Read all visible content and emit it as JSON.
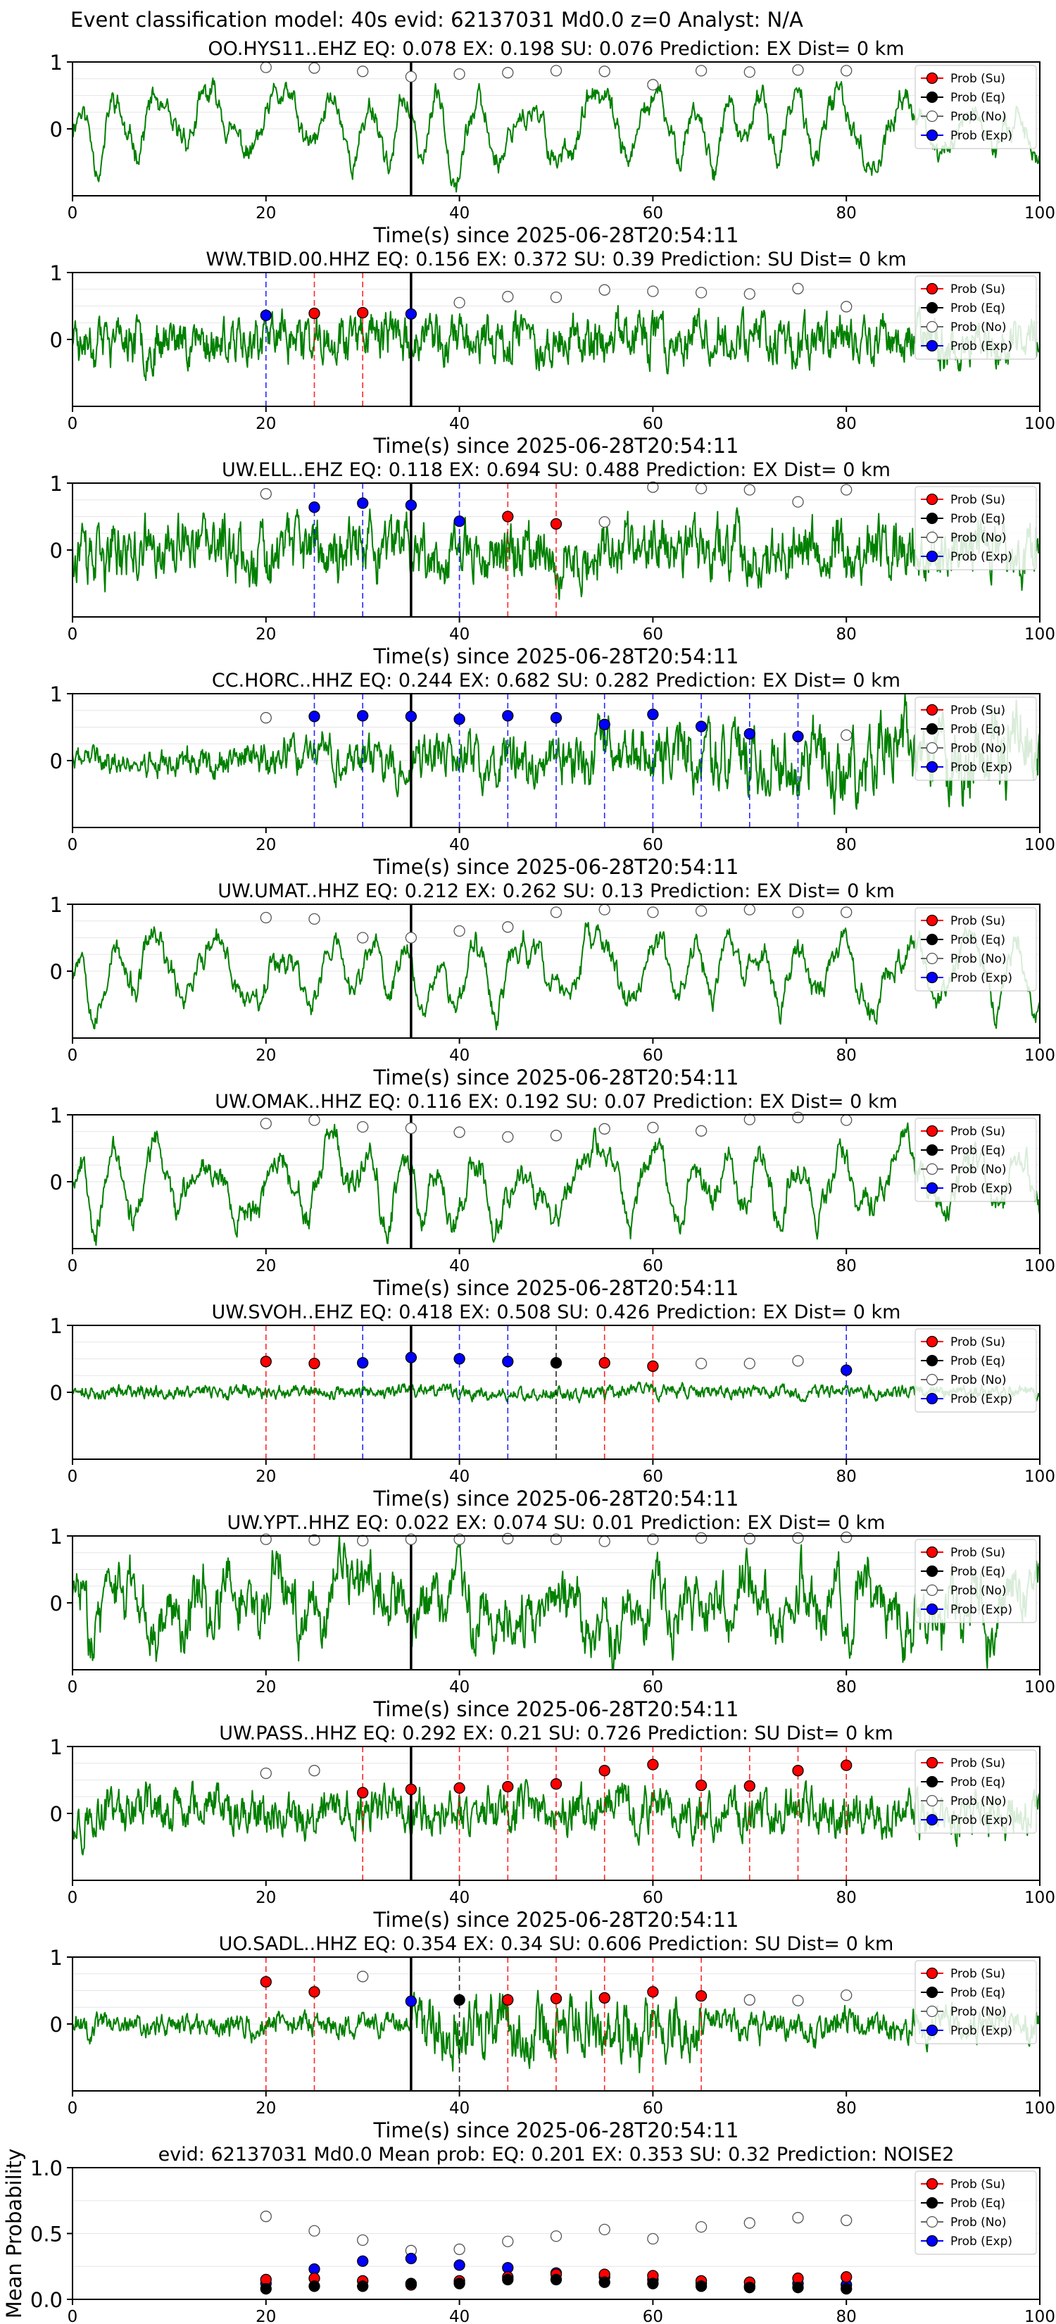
{
  "figure_title": "Event classification model: 40s evid: 62137031 Md0.0 z=0 Analyst: N/A",
  "colors": {
    "waveform": "#008000",
    "prob_su": "#ff0000",
    "prob_eq": "#000000",
    "prob_no": "#ffffff",
    "prob_exp": "#0000ff",
    "origin_line": "#000000"
  },
  "legend": [
    "Prob (Su)",
    "Prob (Eq)",
    "Prob (No)",
    "Prob (Exp)"
  ],
  "chart_data": [
    {
      "type": "line",
      "title": "OO.HYS11..EHZ   EQ: 0.078  EX: 0.198  SU: 0.076   Prediction: EX    Dist= 0 km",
      "xlabel": "Time(s) since 2025-06-28T20:54:11",
      "ylabel": "",
      "xlim": [
        0,
        100
      ],
      "ylim": [
        -1,
        1
      ],
      "xticks": [
        "0",
        "20",
        "40",
        "60",
        "80",
        "100"
      ],
      "yticks": [
        "0",
        "1"
      ],
      "origin_x": 35,
      "waveform": {
        "style": "smooth",
        "amplitude": 0.55,
        "seed": 11
      },
      "window_centers": [
        20,
        25,
        30,
        35,
        40,
        45,
        50,
        55,
        60,
        65,
        70,
        75,
        80
      ],
      "predicted_class": [
        "No",
        "No",
        "No",
        "No",
        "No",
        "No",
        "No",
        "No",
        "No",
        "No",
        "No",
        "No",
        "No"
      ],
      "predicted_prob": [
        0.92,
        0.91,
        0.86,
        0.78,
        0.82,
        0.84,
        0.87,
        0.86,
        0.66,
        0.87,
        0.85,
        0.88,
        0.87
      ]
    },
    {
      "type": "line",
      "title": "WW.TBID.00.HHZ   EQ: 0.156  EX: 0.372  SU: 0.39   Prediction: SU    Dist= 0 km",
      "xlabel": "Time(s) since 2025-06-28T20:54:11",
      "ylabel": "",
      "xlim": [
        0,
        100
      ],
      "ylim": [
        -1,
        1
      ],
      "xticks": [
        "0",
        "20",
        "40",
        "60",
        "80",
        "100"
      ],
      "yticks": [
        "0",
        "1"
      ],
      "origin_x": 35,
      "waveform": {
        "style": "noisy",
        "amplitude": 0.35,
        "seed": 23
      },
      "window_centers": [
        20,
        25,
        30,
        35,
        40,
        45,
        50,
        55,
        60,
        65,
        70,
        75,
        80
      ],
      "predicted_class": [
        "Exp",
        "Su",
        "Su",
        "Exp",
        "No",
        "No",
        "No",
        "No",
        "No",
        "No",
        "No",
        "No",
        "No"
      ],
      "predicted_prob": [
        0.36,
        0.39,
        0.4,
        0.38,
        0.55,
        0.64,
        0.63,
        0.74,
        0.72,
        0.7,
        0.68,
        0.76,
        0.49
      ]
    },
    {
      "type": "line",
      "title": "UW.ELL..EHZ   EQ: 0.118  EX: 0.694  SU: 0.488   Prediction: EX    Dist= 0 km",
      "xlabel": "Time(s) since 2025-06-28T20:54:11",
      "ylabel": "",
      "xlim": [
        0,
        100
      ],
      "ylim": [
        -1,
        1
      ],
      "xticks": [
        "0",
        "20",
        "40",
        "60",
        "80",
        "100"
      ],
      "yticks": [
        "0",
        "1"
      ],
      "origin_x": 35,
      "waveform": {
        "style": "noisy",
        "amplitude": 0.45,
        "seed": 37
      },
      "window_centers": [
        20,
        25,
        30,
        35,
        40,
        45,
        50,
        55,
        60,
        65,
        70,
        75,
        80
      ],
      "predicted_class": [
        "No",
        "Exp",
        "Exp",
        "Exp",
        "Exp",
        "Su",
        "Su",
        "No",
        "No",
        "No",
        "No",
        "No",
        "No"
      ],
      "predicted_prob": [
        0.84,
        0.64,
        0.7,
        0.67,
        0.43,
        0.5,
        0.39,
        0.42,
        0.94,
        0.92,
        0.9,
        0.72,
        0.9
      ]
    },
    {
      "type": "line",
      "title": "CC.HORC..HHZ   EQ: 0.244  EX: 0.682  SU: 0.282   Prediction: EX    Dist= 0 km",
      "xlabel": "Time(s) since 2025-06-28T20:54:11",
      "ylabel": "",
      "xlim": [
        0,
        100
      ],
      "ylim": [
        -1,
        1
      ],
      "xticks": [
        "0",
        "20",
        "40",
        "60",
        "80",
        "100"
      ],
      "yticks": [
        "0",
        "1"
      ],
      "origin_x": 35,
      "waveform": {
        "style": "growing",
        "amplitude": 0.45,
        "seed": 41
      },
      "window_centers": [
        20,
        25,
        30,
        35,
        40,
        45,
        50,
        55,
        60,
        65,
        70,
        75,
        80
      ],
      "predicted_class": [
        "No",
        "Exp",
        "Exp",
        "Exp",
        "Exp",
        "Exp",
        "Exp",
        "Exp",
        "Exp",
        "Exp",
        "Exp",
        "Exp",
        "No"
      ],
      "predicted_prob": [
        0.64,
        0.66,
        0.67,
        0.66,
        0.62,
        0.67,
        0.64,
        0.54,
        0.69,
        0.51,
        0.4,
        0.36,
        0.38
      ]
    },
    {
      "type": "line",
      "title": "UW.UMAT..HHZ   EQ: 0.212  EX: 0.262  SU: 0.13   Prediction: EX    Dist= 0 km",
      "xlabel": "Time(s) since 2025-06-28T20:54:11",
      "ylabel": "",
      "xlim": [
        0,
        100
      ],
      "ylim": [
        -1,
        1
      ],
      "xticks": [
        "0",
        "20",
        "40",
        "60",
        "80",
        "100"
      ],
      "yticks": [
        "0",
        "1"
      ],
      "origin_x": 35,
      "waveform": {
        "style": "smooth",
        "amplitude": 0.55,
        "seed": 53
      },
      "window_centers": [
        20,
        25,
        30,
        35,
        40,
        45,
        50,
        55,
        60,
        65,
        70,
        75,
        80
      ],
      "predicted_class": [
        "No",
        "No",
        "No",
        "No",
        "No",
        "No",
        "No",
        "No",
        "No",
        "No",
        "No",
        "No",
        "No"
      ],
      "predicted_prob": [
        0.8,
        0.78,
        0.5,
        0.5,
        0.6,
        0.66,
        0.88,
        0.92,
        0.88,
        0.9,
        0.92,
        0.88,
        0.88
      ]
    },
    {
      "type": "line",
      "title": "UW.OMAK..HHZ   EQ: 0.116  EX: 0.192  SU: 0.07   Prediction: EX    Dist= 0 km",
      "xlabel": "Time(s) since 2025-06-28T20:54:11",
      "ylabel": "",
      "xlim": [
        0,
        100
      ],
      "ylim": [
        -1,
        1
      ],
      "xticks": [
        "0",
        "20",
        "40",
        "60",
        "80",
        "100"
      ],
      "yticks": [
        "0",
        "1"
      ],
      "origin_x": 35,
      "waveform": {
        "style": "smooth",
        "amplitude": 0.6,
        "seed": 67
      },
      "window_centers": [
        20,
        25,
        30,
        35,
        40,
        45,
        50,
        55,
        60,
        65,
        70,
        75,
        80
      ],
      "predicted_class": [
        "No",
        "No",
        "No",
        "No",
        "No",
        "No",
        "No",
        "No",
        "No",
        "No",
        "No",
        "No",
        "No"
      ],
      "predicted_prob": [
        0.87,
        0.92,
        0.82,
        0.8,
        0.74,
        0.67,
        0.69,
        0.79,
        0.81,
        0.76,
        0.93,
        0.96,
        0.92
      ]
    },
    {
      "type": "line",
      "title": "UW.SVOH..EHZ   EQ: 0.418  EX: 0.508  SU: 0.426   Prediction: EX    Dist= 0 km",
      "xlabel": "Time(s) since 2025-06-28T20:54:11",
      "ylabel": "",
      "xlim": [
        0,
        100
      ],
      "ylim": [
        -1,
        1
      ],
      "xticks": [
        "0",
        "20",
        "40",
        "60",
        "80",
        "100"
      ],
      "yticks": [
        "0",
        "1"
      ],
      "origin_x": 35,
      "waveform": {
        "style": "quiet",
        "amplitude": 0.15,
        "seed": 71
      },
      "window_centers": [
        20,
        25,
        30,
        35,
        40,
        45,
        50,
        55,
        60,
        65,
        70,
        75,
        80
      ],
      "predicted_class": [
        "Su",
        "Su",
        "Exp",
        "Exp",
        "Exp",
        "Exp",
        "Eq",
        "Su",
        "Su",
        "No",
        "No",
        "No",
        "Exp"
      ],
      "predicted_prob": [
        0.46,
        0.43,
        0.44,
        0.52,
        0.5,
        0.46,
        0.44,
        0.44,
        0.39,
        0.43,
        0.43,
        0.47,
        0.33
      ]
    },
    {
      "type": "line",
      "title": "UW.YPT..HHZ   EQ: 0.022  EX: 0.074  SU: 0.01   Prediction: EX    Dist= 0 km",
      "xlabel": "Time(s) since 2025-06-28T20:54:11",
      "ylabel": "",
      "xlim": [
        0,
        100
      ],
      "ylim": [
        -1,
        1
      ],
      "xticks": [
        "0",
        "20",
        "40",
        "60",
        "80",
        "100"
      ],
      "yticks": [
        "0",
        "1"
      ],
      "origin_x": 35,
      "waveform": {
        "style": "mixed",
        "amplitude": 0.6,
        "seed": 83
      },
      "window_centers": [
        20,
        25,
        30,
        35,
        40,
        45,
        50,
        55,
        60,
        65,
        70,
        75,
        80
      ],
      "predicted_class": [
        "No",
        "No",
        "No",
        "No",
        "No",
        "No",
        "No",
        "No",
        "No",
        "No",
        "No",
        "No",
        "No"
      ],
      "predicted_prob": [
        0.95,
        0.94,
        0.93,
        0.95,
        0.95,
        0.96,
        0.95,
        0.92,
        0.95,
        0.97,
        0.96,
        0.97,
        0.98
      ]
    },
    {
      "type": "line",
      "title": "UW.PASS..HHZ   EQ: 0.292  EX: 0.21  SU: 0.726   Prediction: SU    Dist= 0 km",
      "xlabel": "Time(s) since 2025-06-28T20:54:11",
      "ylabel": "",
      "xlim": [
        0,
        100
      ],
      "ylim": [
        -1,
        1
      ],
      "xticks": [
        "0",
        "20",
        "40",
        "60",
        "80",
        "100"
      ],
      "yticks": [
        "0",
        "1"
      ],
      "origin_x": 35,
      "waveform": {
        "style": "noisy",
        "amplitude": 0.33,
        "seed": 97
      },
      "window_centers": [
        20,
        25,
        30,
        35,
        40,
        45,
        50,
        55,
        60,
        65,
        70,
        75,
        80
      ],
      "predicted_class": [
        "No",
        "No",
        "Su",
        "Su",
        "Su",
        "Su",
        "Su",
        "Su",
        "Su",
        "Su",
        "Su",
        "Su",
        "Su"
      ],
      "predicted_prob": [
        0.6,
        0.64,
        0.31,
        0.36,
        0.38,
        0.4,
        0.44,
        0.64,
        0.73,
        0.42,
        0.41,
        0.64,
        0.72
      ]
    },
    {
      "type": "line",
      "title": "UO.SADL..HHZ   EQ: 0.354  EX: 0.34  SU: 0.606   Prediction: SU    Dist= 0 km",
      "xlabel": "Time(s) since 2025-06-28T20:54:11",
      "ylabel": "",
      "xlim": [
        0,
        100
      ],
      "ylim": [
        -1,
        1
      ],
      "xticks": [
        "0",
        "20",
        "40",
        "60",
        "80",
        "100"
      ],
      "yticks": [
        "0",
        "1"
      ],
      "origin_x": 35,
      "waveform": {
        "style": "burst",
        "amplitude": 0.4,
        "seed": 101
      },
      "window_centers": [
        20,
        25,
        30,
        35,
        40,
        45,
        50,
        55,
        60,
        65,
        70,
        75,
        80
      ],
      "predicted_class": [
        "Su",
        "Su",
        "No",
        "Exp",
        "Eq",
        "Su",
        "Su",
        "Su",
        "Su",
        "Su",
        "No",
        "No",
        "No"
      ],
      "predicted_prob": [
        0.63,
        0.48,
        0.71,
        0.34,
        0.36,
        0.36,
        0.38,
        0.39,
        0.48,
        0.42,
        0.36,
        0.35,
        0.43
      ]
    },
    {
      "type": "scatter",
      "title": "evid: 62137031  Md0.0   Mean prob:   EQ: 0.201  EX: 0.353  SU: 0.32   Prediction: NOISE2",
      "xlabel": "",
      "ylabel": "Mean Probability",
      "xlim": [
        0,
        100
      ],
      "ylim": [
        0,
        1
      ],
      "xticks": [
        "0",
        "20",
        "40",
        "60",
        "80",
        "100"
      ],
      "yticks": [
        "0.0",
        "0.5",
        "1.0"
      ],
      "x": [
        20,
        25,
        30,
        35,
        40,
        45,
        50,
        55,
        60,
        65,
        70,
        75,
        80
      ],
      "series": [
        {
          "name": "Prob (No)",
          "values": [
            0.63,
            0.52,
            0.45,
            0.37,
            0.38,
            0.44,
            0.48,
            0.53,
            0.46,
            0.55,
            0.58,
            0.62,
            0.6
          ]
        },
        {
          "name": "Prob (Exp)",
          "values": [
            0.12,
            0.23,
            0.29,
            0.31,
            0.26,
            0.24,
            0.2,
            0.17,
            0.15,
            0.12,
            0.1,
            0.12,
            0.11
          ]
        },
        {
          "name": "Prob (Su)",
          "values": [
            0.15,
            0.16,
            0.14,
            0.11,
            0.14,
            0.17,
            0.19,
            0.19,
            0.18,
            0.14,
            0.13,
            0.16,
            0.17
          ]
        },
        {
          "name": "Prob (Eq)",
          "values": [
            0.08,
            0.1,
            0.1,
            0.12,
            0.12,
            0.15,
            0.15,
            0.13,
            0.12,
            0.1,
            0.09,
            0.09,
            0.08
          ]
        }
      ]
    }
  ]
}
